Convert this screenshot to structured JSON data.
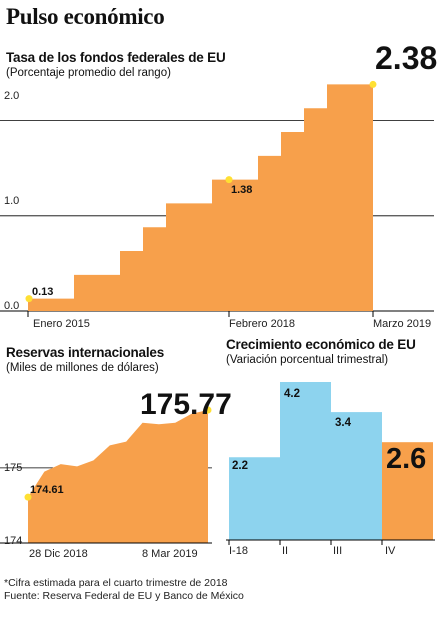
{
  "header": {
    "title": "Pulso económico"
  },
  "charts": {
    "fed": {
      "title": "Tasa de los fondos federales de EU",
      "subtitle": "(Porcentaje promedio del rango)",
      "yticks": [
        "2.0",
        "1.0",
        "0.0"
      ],
      "xticks": [
        "Enero 2015",
        "Febrero 2018",
        "Marzo 2019"
      ],
      "start_label": "0.13",
      "mid_label": "1.38",
      "end_label": "2.38"
    },
    "reserves": {
      "title": "Reservas internacionales",
      "subtitle": "(Miles de millones de dólares)",
      "yticks": [
        "175",
        "174"
      ],
      "xticks": [
        "28 Dic 2018",
        "8 Mar 2019"
      ],
      "start_label": "174.61",
      "end_label": "175.77"
    },
    "growth": {
      "title": "Crecimiento económico de EU",
      "subtitle": "(Variación porcentual trimestral)",
      "categories": [
        "I-18",
        "II",
        "III",
        "IV"
      ],
      "value_labels": [
        "2.2",
        "4.2",
        "3.4",
        "2.6"
      ]
    }
  },
  "footer": {
    "note": "*Cifra estimada para el cuarto trimestre de 2018",
    "source": "Fuente: Reserva Federal de EU y Banco de México"
  },
  "colors": {
    "orange": "#F7A04B",
    "blue": "#8DD3EE",
    "marker": "#FFE033",
    "line": "#000000"
  },
  "chart_data": [
    {
      "type": "area",
      "title": "Tasa de los fondos federales de EU",
      "subtitle": "(Porcentaje promedio del rango)",
      "step": true,
      "ylim": [
        0,
        2.5
      ],
      "x_tick_labels": [
        "Enero 2015",
        "Febrero 2018",
        "Marzo 2019"
      ],
      "y_tick_labels": [
        "2.0",
        "1.0",
        "0.0"
      ],
      "values": [
        0.13,
        0.13,
        0.38,
        0.38,
        0.63,
        0.88,
        1.13,
        1.13,
        1.38,
        1.38,
        1.63,
        1.88,
        2.13,
        2.38,
        2.38
      ],
      "annotations": [
        "0.13",
        "1.38",
        "2.38"
      ]
    },
    {
      "type": "area",
      "title": "Reservas internacionales",
      "subtitle": "(Miles de millones de dólares)",
      "ylim": [
        174,
        175.85
      ],
      "x_tick_labels": [
        "28 Dic 2018",
        "8 Mar 2019"
      ],
      "y_tick_labels": [
        "175",
        "174"
      ],
      "values": [
        174.61,
        174.95,
        175.05,
        175.02,
        175.1,
        175.3,
        175.35,
        175.6,
        175.58,
        175.6,
        175.72,
        175.77
      ],
      "annotations": [
        "174.61",
        "175.77"
      ]
    },
    {
      "type": "bar",
      "title": "Crecimiento económico de EU",
      "subtitle": "(Variación porcentual trimestral)",
      "categories": [
        "I-18",
        "II",
        "III",
        "IV"
      ],
      "values": [
        2.2,
        4.2,
        3.4,
        2.6
      ],
      "ylim": [
        0,
        4.2
      ]
    }
  ]
}
